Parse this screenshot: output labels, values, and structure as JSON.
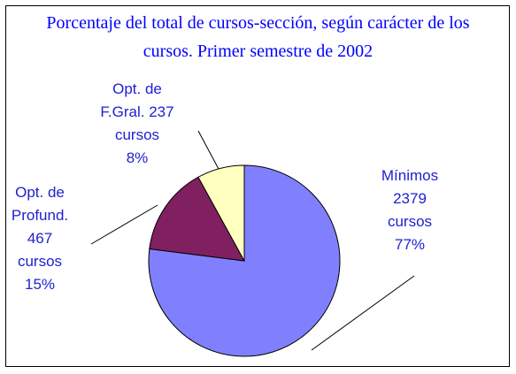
{
  "chart_data": {
    "type": "pie",
    "title": "Porcentaje del total de cursos-sección, según carácter de los cursos. Primer semestre de 2002",
    "categories": [
      "Mínimos",
      "Opt. de Profund.",
      "Opt. de F.Gral."
    ],
    "counts": [
      2379,
      467,
      237
    ],
    "unit": "cursos",
    "values": [
      77,
      15,
      8
    ],
    "value_labels": [
      "77%",
      "15%",
      "8%"
    ],
    "colors": [
      "#8080ff",
      "#802060",
      "#ffffc0"
    ]
  }
}
